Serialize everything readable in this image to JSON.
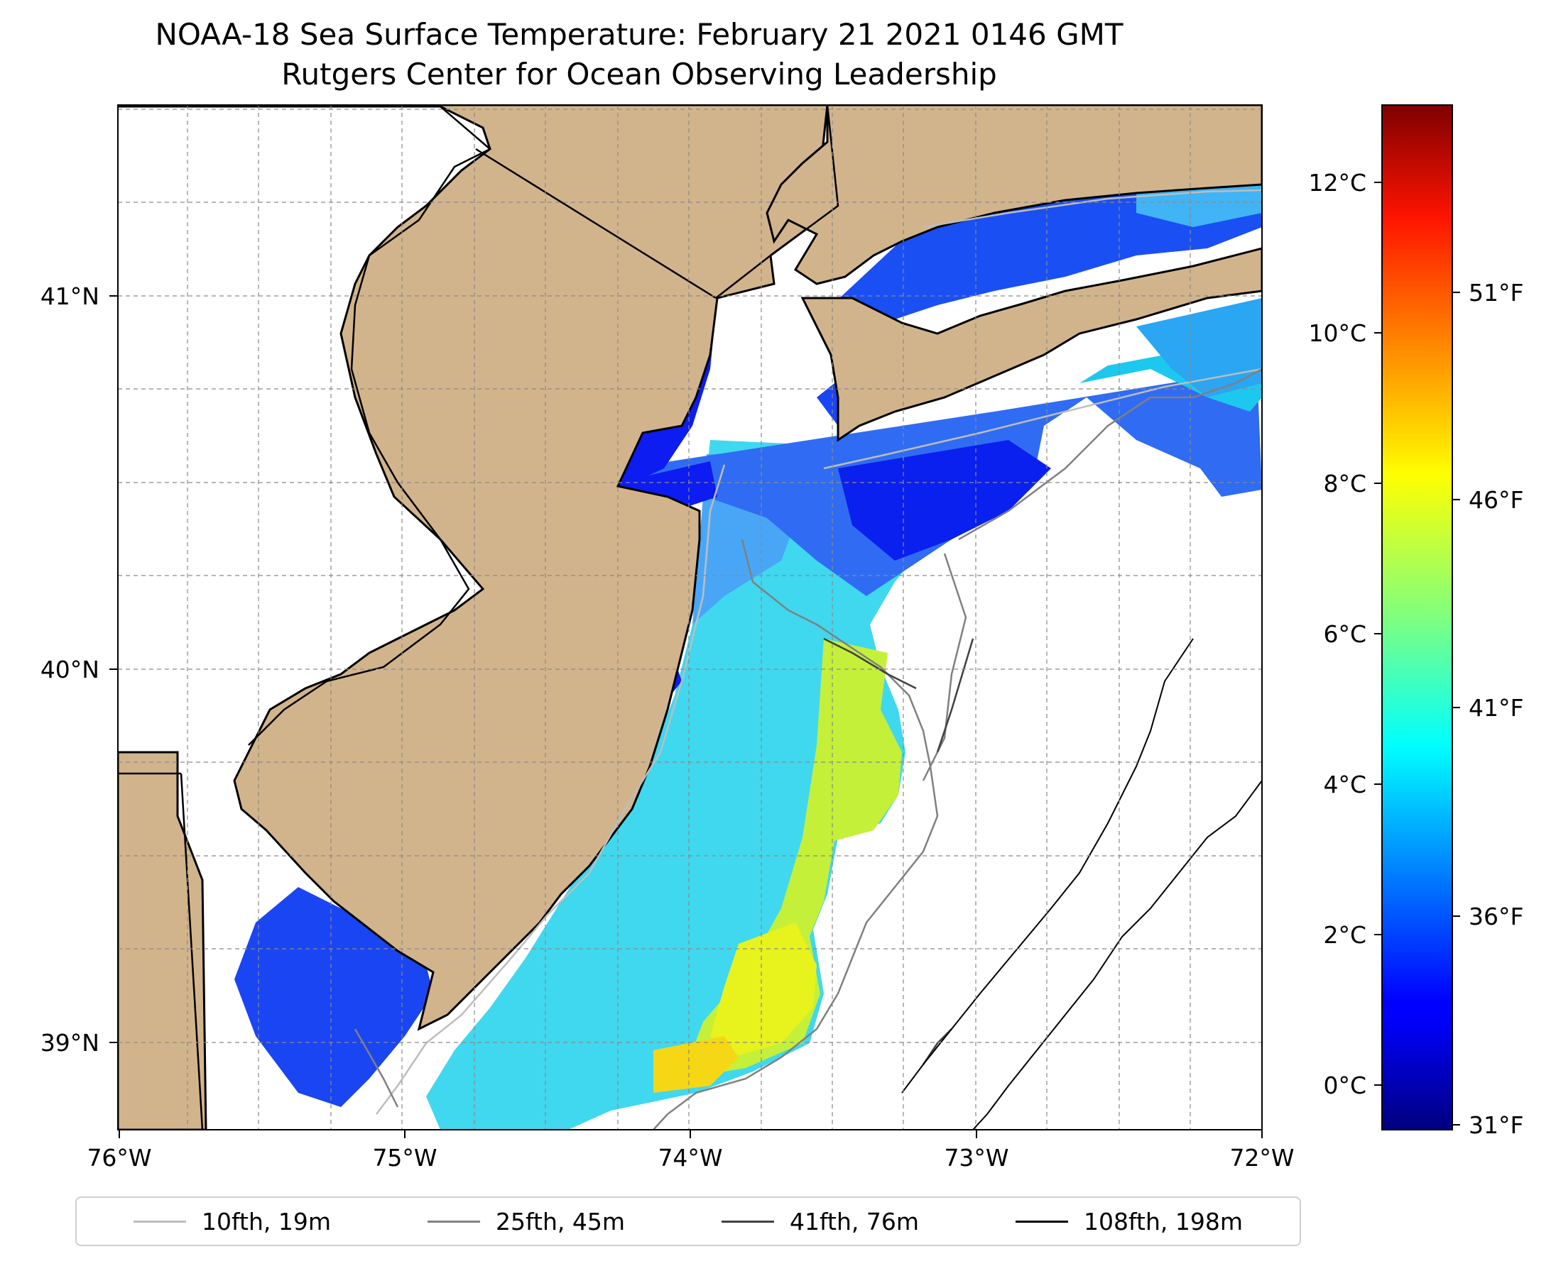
{
  "title": {
    "line1": "NOAA-18 Sea Surface Temperature: February 21 2021 0146 GMT",
    "line2": "Rutgers Center for Ocean Observing Leadership"
  },
  "map": {
    "x_ticks": [
      "76°W",
      "75°W",
      "74°W",
      "73°W",
      "72°W"
    ],
    "y_ticks": [
      "41°N",
      "40°N",
      "39°N"
    ],
    "land_color": "#d2b48c",
    "ocean_nodata_color": "#ffffff"
  },
  "colorbar": {
    "colormap": "jet",
    "celsius_ticks": [
      "12°C",
      "10°C",
      "8°C",
      "6°C",
      "4°C",
      "2°C",
      "0°C"
    ],
    "fahrenheit_ticks": [
      "51°F",
      "46°F",
      "41°F",
      "36°F",
      "31°F"
    ]
  },
  "legend": [
    {
      "label": "10fth, 19m",
      "color": "#bdbdbd"
    },
    {
      "label": "25fth, 45m",
      "color": "#808080"
    },
    {
      "label": "41fth, 76m",
      "color": "#404040"
    },
    {
      "label": "108fth, 198m",
      "color": "#000000"
    }
  ]
}
